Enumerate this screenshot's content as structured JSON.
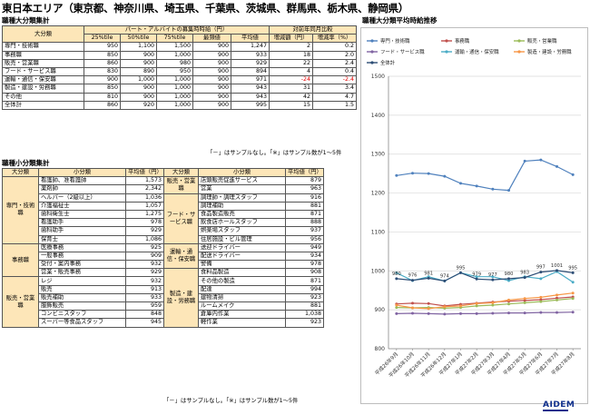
{
  "page_title": "東日本エリア（東京都、神奈川県、埼玉県、千葉県、茨城県、群馬県、栃木県、静岡県）",
  "section1_title": "職種大分類集計",
  "section2_title": "職種小分類集計",
  "section3_title": "職種大分類平均時給推移",
  "table1": {
    "header_category": "大分類",
    "header_group": "パート・アルバイトの募集時時給（円）",
    "header_compare": "対前年同月比較",
    "sub_headers": [
      "25%tile",
      "50%tile",
      "75%tile",
      "最頻値",
      "平均値",
      "増減額（円）",
      "増減率（%）"
    ],
    "rows": [
      [
        "専門・技術職",
        "950",
        "1,100",
        "1,500",
        "900",
        "1,247",
        "2",
        "0.2"
      ],
      [
        "事務職",
        "850",
        "900",
        "1,000",
        "900",
        "933",
        "18",
        "2.0"
      ],
      [
        "販売・営業職",
        "860",
        "900",
        "980",
        "900",
        "929",
        "22",
        "2.4"
      ],
      [
        "フード・サービス職",
        "830",
        "890",
        "950",
        "900",
        "894",
        "4",
        "0.4"
      ],
      [
        "運輸・通信・保安職",
        "900",
        "1,000",
        "1,000",
        "900",
        "971",
        "-24",
        "-2.4"
      ],
      [
        "製造・建設・労務職",
        "850",
        "900",
        "1,000",
        "900",
        "943",
        "31",
        "3.4"
      ],
      [
        "その他",
        "810",
        "900",
        "1,000",
        "900",
        "943",
        "42",
        "4.7"
      ],
      [
        "全体計",
        "860",
        "920",
        "1,000",
        "900",
        "995",
        "15",
        "1.5"
      ]
    ],
    "note": "「－」はサンプルなし。「※」はサンプル数が1～5件"
  },
  "table2": {
    "headers": [
      "大分類",
      "小分類",
      "平均値（円）",
      "大分類",
      "小分類",
      "平均値（円）"
    ],
    "left_groups": [
      {
        "name": "専門・技術職",
        "items": [
          [
            "看護師、准看護師",
            "1,573"
          ],
          [
            "薬剤師",
            "2,342"
          ],
          [
            "ヘルパー（2級以上）",
            "1,036"
          ],
          [
            "介護福祉士",
            "1,057"
          ],
          [
            "歯科衛生士",
            "1,275"
          ],
          [
            "看護助手",
            "978"
          ],
          [
            "歯科助手",
            "929"
          ],
          [
            "保育士",
            "1,086"
          ]
        ]
      },
      {
        "name": "事務職",
        "items": [
          [
            "医療事務",
            "925"
          ],
          [
            "一般事務",
            "909"
          ],
          [
            "受付・案内事務",
            "932"
          ],
          [
            "営業・販売事務",
            "929"
          ]
        ]
      },
      {
        "name": "販売・営業職",
        "items": [
          [
            "レジ",
            "932"
          ],
          [
            "販売",
            "913"
          ],
          [
            "販売補助",
            "933"
          ],
          [
            "服飾販売",
            "959"
          ],
          [
            "コンビニスタッフ",
            "848"
          ],
          [
            "スーパー等食品スタッフ",
            "945"
          ]
        ]
      }
    ],
    "right_groups": [
      {
        "name": "販売・営業職",
        "items": [
          [
            "店頭販売促進サービス",
            "879"
          ],
          [
            "営業",
            "963"
          ]
        ]
      },
      {
        "name": "フード・サービス職",
        "items": [
          [
            "調理師・調理スタッフ",
            "916"
          ],
          [
            "調理補助",
            "881"
          ],
          [
            "食品製造販売",
            "871"
          ],
          [
            "飲食店ホールスタッフ",
            "888"
          ],
          [
            "娯楽場スタッフ",
            "937"
          ],
          [
            "住居施設・ビル管理",
            "956"
          ]
        ]
      },
      {
        "name": "運輸・通信・保安職",
        "items": [
          [
            "送迎ドライバー",
            "949"
          ],
          [
            "配送ドライバー",
            "934"
          ],
          [
            "警備",
            "978"
          ]
        ]
      },
      {
        "name": "製造・建設・労務職",
        "items": [
          [
            "食料品製造",
            "908"
          ],
          [
            "その他の製造",
            "871"
          ],
          [
            "配達",
            "994"
          ],
          [
            "建物清掃",
            "923"
          ],
          [
            "ルームメイク",
            "881"
          ],
          [
            "倉庫内作業",
            "1,038"
          ],
          [
            "軽作業",
            "923"
          ]
        ]
      }
    ],
    "note": "「－」はサンプルなし。「※」はサンプル数が1～5件"
  },
  "chart_data": {
    "type": "line",
    "title": "",
    "xlabel": "",
    "ylabel": "",
    "ylim": [
      800,
      1500
    ],
    "yticks": [
      800,
      900,
      1000,
      1100,
      1200,
      1300,
      1400,
      1500
    ],
    "grid": true,
    "legend": "top",
    "categories": [
      "平成26年9月",
      "平成26年10月",
      "平成26年11月",
      "平成26年12月",
      "平成27年1月",
      "平成27年2月",
      "平成27年3月",
      "平成27年4月",
      "平成27年5月",
      "平成27年6月",
      "平成27年7月",
      "平成27年8月"
    ],
    "series": [
      {
        "name": "専門・技術職",
        "color": "#4f81bd",
        "values": [
          1245,
          1251,
          1250,
          1243,
          1225,
          1218,
          1210,
          1207,
          1282,
          1285,
          1268,
          1247
        ]
      },
      {
        "name": "事務職",
        "color": "#c0504d",
        "values": [
          915,
          917,
          916,
          910,
          914,
          917,
          920,
          922,
          924,
          926,
          930,
          933
        ]
      },
      {
        "name": "販売・営業職",
        "color": "#9bbb59",
        "values": [
          906,
          905,
          906,
          904,
          906,
          910,
          912,
          915,
          918,
          921,
          925,
          929
        ]
      },
      {
        "name": "フード・サービス職",
        "color": "#8064a2",
        "values": [
          890,
          891,
          890,
          889,
          890,
          890,
          891,
          892,
          892,
          893,
          893,
          894
        ]
      },
      {
        "name": "運輸・通信・保安職",
        "color": "#4bacc6",
        "values": [
          995,
          975,
          985,
          974,
          995,
          985,
          985,
          975,
          985,
          980,
          998,
          971
        ]
      },
      {
        "name": "製造・建設・労務職",
        "color": "#f79646",
        "values": [
          912,
          905,
          903,
          908,
          910,
          916,
          918,
          925,
          929,
          932,
          938,
          943
        ]
      },
      {
        "name": "全体計",
        "color": "#2c4d75",
        "values": [
          980,
          976,
          981,
          974,
          995,
          979,
          977,
          980,
          983,
          997,
          1001,
          995
        ]
      }
    ],
    "labelled_series": "全体計",
    "data_labels": [
      "980",
      "976",
      "981",
      "974",
      "995",
      "979",
      "977",
      "980",
      "983",
      "997",
      "1001",
      "995"
    ]
  },
  "logo_text": "AIDEM"
}
